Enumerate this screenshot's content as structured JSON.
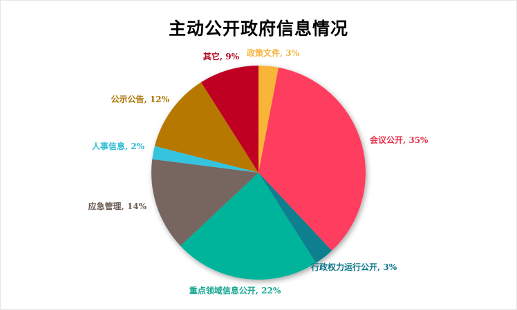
{
  "chart_data": {
    "type": "pie",
    "title": "主动公开政府信息情况",
    "slices": [
      {
        "label": "政策文件",
        "value": 3,
        "display": "政策文件, 3%",
        "color": "#f9b538"
      },
      {
        "label": "会议公开",
        "value": 35,
        "display": "会议公开, 35%",
        "color": "#ff3c5e"
      },
      {
        "label": "行政权力运行公开",
        "value": 3,
        "display": "行政权力运行公开, 3%",
        "color": "#0a7f8f"
      },
      {
        "label": "重点领域信息公开",
        "value": 22,
        "display": "重点领域信息公开, 22%",
        "color": "#00b39b"
      },
      {
        "label": "应急管理",
        "value": 14,
        "display": "应急管理, 14%",
        "color": "#76665f"
      },
      {
        "label": "人事信息",
        "value": 2,
        "display": "人事信息, 2%",
        "color": "#36c4dd"
      },
      {
        "label": "公示公告",
        "value": 12,
        "display": "公示公告, 12%",
        "color": "#b77800"
      },
      {
        "label": "其它",
        "value": 9,
        "display": "其它, 9%",
        "color": "#c00020"
      }
    ],
    "label_colors": [
      "#f6b53d",
      "#e9334e",
      "#0b7488",
      "#13a590",
      "#6e5e58",
      "#2fbcd5",
      "#ad7300",
      "#b3001c"
    ]
  }
}
